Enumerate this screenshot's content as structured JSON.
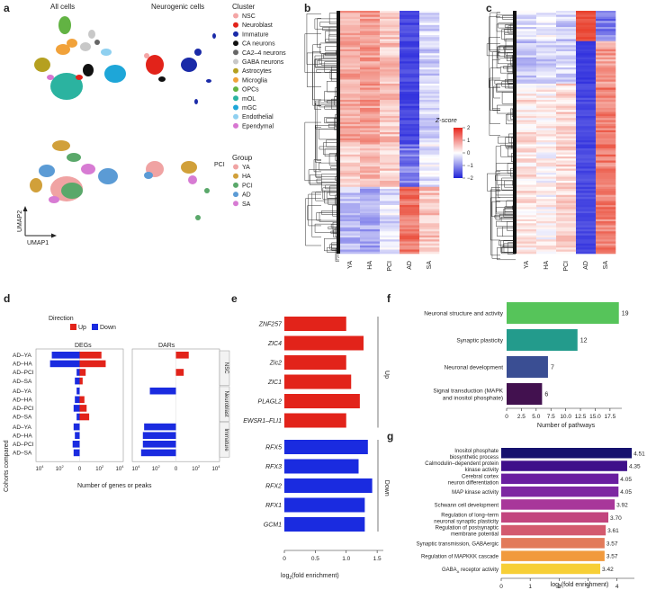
{
  "panels": {
    "a": {
      "letter": "a",
      "title_left": "All cells",
      "title_right": "Neurogenic cells",
      "pci_label": "PCI",
      "axis_y": "UMAP2",
      "axis_x": "UMAP1",
      "cluster_legend": {
        "title": "Cluster",
        "items": [
          {
            "label": "NSC",
            "color": "#f4a6a6"
          },
          {
            "label": "Neuroblast",
            "color": "#e2231a"
          },
          {
            "label": "Immature",
            "color": "#1a2aa8"
          },
          {
            "label": "CA neurons",
            "color": "#111111"
          },
          {
            "label": "CA2–4 neurons",
            "color": "#666666"
          },
          {
            "label": "GABA neurons",
            "color": "#c8c8c8"
          },
          {
            "label": "Astrocytes",
            "color": "#b5a020"
          },
          {
            "label": "Microglia",
            "color": "#f1a23a"
          },
          {
            "label": "OPCs",
            "color": "#62b343"
          },
          {
            "label": "mOL",
            "color": "#2bb3a0"
          },
          {
            "label": "mGC",
            "color": "#1ea6d8"
          },
          {
            "label": "Endothelial",
            "color": "#8fd0f0"
          },
          {
            "label": "Ependymal",
            "color": "#d776d1"
          }
        ]
      },
      "group_legend": {
        "title": "Group",
        "items": [
          {
            "label": "YA",
            "color": "#f0a3a3"
          },
          {
            "label": "HA",
            "color": "#d1a03a"
          },
          {
            "label": "PCI",
            "color": "#5aa86a"
          },
          {
            "label": "AD",
            "color": "#5b9bd5"
          },
          {
            "label": "SA",
            "color": "#d77bd3"
          }
        ]
      }
    },
    "b": {
      "letter": "b",
      "columns": [
        "YA",
        "HA",
        "PCI",
        "AD",
        "SA"
      ],
      "colorbar_title": "Z-score",
      "colorbar_ticks": [
        "2",
        "1",
        "0",
        "−1",
        "−2"
      ]
    },
    "c": {
      "letter": "c",
      "columns": [
        "YA",
        "HA",
        "PCI",
        "AD",
        "SA"
      ]
    },
    "d": {
      "letter": "d",
      "legend_title": "Direction",
      "legend_items": [
        {
          "label": "Up",
          "color": "#e2231a"
        },
        {
          "label": "Down",
          "color": "#1a2be0"
        }
      ],
      "facet_titles": [
        "DEGs",
        "DARs"
      ],
      "row_groups": [
        "NSC",
        "Neuroblast",
        "Immature"
      ],
      "row_labels": [
        "AD–YA",
        "AD–HA",
        "AD–PCI",
        "AD–SA"
      ],
      "ylabel": "Cohorts compared",
      "xlabel": "Number of genes or peaks",
      "x_ticks": [
        "10",
        "10",
        "0",
        "10",
        "10"
      ],
      "x_tick_sups": [
        "4",
        "2",
        "",
        "2",
        "4"
      ]
    },
    "e": {
      "letter": "e",
      "xlabel": "log",
      "xlabel_sub": "2",
      "xlabel_rest": "(fold enrichment)",
      "x_ticks": [
        "0",
        "0.5",
        "1.0",
        "1.5"
      ],
      "group_up": "Up",
      "group_down": "Down"
    },
    "f": {
      "letter": "f",
      "xlabel": "Number of pathways",
      "x_ticks": [
        "0",
        "2.5",
        "5.0",
        "7.5",
        "10.0",
        "12.5",
        "15.0",
        "17.5"
      ]
    },
    "g": {
      "letter": "g",
      "xlabel": "log",
      "xlabel_sub": "2",
      "xlabel_rest": "(fold enrichment)",
      "x_ticks": [
        "0",
        "1",
        "2",
        "3",
        "4"
      ]
    }
  },
  "chart_data": [
    {
      "type": "bar",
      "panel": "d",
      "orientation": "horizontal",
      "xscale": "symlog",
      "categories": [
        "NSC AD–YA",
        "NSC AD–HA",
        "NSC AD–PCI",
        "NSC AD–SA",
        "Neuroblast AD–YA",
        "Neuroblast AD–HA",
        "Neuroblast AD–PCI",
        "Neuroblast AD–SA",
        "Immature AD–YA",
        "Immature AD–HA",
        "Immature AD–PCI",
        "Immature AD–SA"
      ],
      "series": [
        {
          "name": "DEGs Up",
          "color": "#e2231a",
          "values": [
            150,
            400,
            3,
            1,
            0,
            2,
            4,
            8,
            0,
            0,
            0,
            0
          ]
        },
        {
          "name": "DEGs Down",
          "color": "#1a2be0",
          "values": [
            -600,
            -900,
            -1,
            -2,
            -1,
            -2,
            -3,
            -1,
            -3,
            -2,
            -4,
            -3
          ]
        },
        {
          "name": "DARs Up",
          "color": "#e2231a",
          "values": [
            18,
            0,
            5,
            0,
            0,
            0,
            0,
            0,
            0,
            0,
            0,
            0
          ]
        },
        {
          "name": "DARs Down",
          "color": "#1a2be0",
          "values": [
            0,
            0,
            0,
            0,
            -400,
            0,
            0,
            0,
            -1500,
            -2000,
            -2000,
            -3000
          ]
        }
      ]
    },
    {
      "type": "bar",
      "panel": "e",
      "orientation": "horizontal",
      "categories": [
        "ZNF257",
        "ZIC4",
        "Zic2",
        "ZIC1",
        "PLAGL2",
        "EWSR1–FLI1",
        "RFX5",
        "RFX3",
        "RFX2",
        "RFX1",
        "GCM1"
      ],
      "groups": [
        "Up",
        "Up",
        "Up",
        "Up",
        "Up",
        "Up",
        "Down",
        "Down",
        "Down",
        "Down",
        "Down"
      ],
      "values": [
        1.0,
        1.28,
        1.0,
        1.08,
        1.22,
        1.0,
        1.35,
        1.2,
        1.42,
        1.3,
        1.3
      ],
      "colors": {
        "Up": "#e2231a",
        "Down": "#1a2be0"
      },
      "xlim": [
        0,
        1.6
      ]
    },
    {
      "type": "bar",
      "panel": "f",
      "orientation": "horizontal",
      "categories": [
        "Neuronal structure and activity",
        "Synaptic plasticity",
        "Neuronal development",
        "Signal transduction (MAPK and inositol phosphate)"
      ],
      "values": [
        19,
        12,
        7,
        6
      ],
      "colors": [
        "#56c45a",
        "#239b8c",
        "#3a4e93",
        "#42114f"
      ],
      "xlim": [
        0,
        19.5
      ]
    },
    {
      "type": "bar",
      "panel": "g",
      "orientation": "horizontal",
      "categories": [
        "Inositol phosphate biosynthetic process",
        "Calmodulin–dependent protein kinase activity",
        "Cerebral cortex neuron differentiation",
        "MAP kinase activity",
        "Schwann cell development",
        "Regulation of long–term neuronal synaptic plasticity",
        "Regulation of postsynaptic membrane potential",
        "Synaptic transmission, GABAergic",
        "Regulation of MAPKKK cascade",
        "GABA_A receptor activity"
      ],
      "values": [
        4.51,
        4.35,
        4.05,
        4.05,
        3.92,
        3.7,
        3.61,
        3.57,
        3.57,
        3.42
      ],
      "value_labels": [
        "4.51",
        "4.35",
        "4.05",
        "4.05",
        "3.92",
        "3.70",
        "3.61",
        "3.57",
        "3.57",
        "3.42"
      ],
      "colors": [
        "#15116e",
        "#3e0f8a",
        "#6a1ea0",
        "#7d27a2",
        "#a8379a",
        "#c2457e",
        "#d35a6e",
        "#e27a5a",
        "#f19a3d",
        "#f7cf36"
      ],
      "xlim": [
        0,
        4.6
      ]
    },
    {
      "type": "heatmap",
      "panel": "b",
      "columns": [
        "YA",
        "HA",
        "PCI",
        "AD",
        "SA"
      ],
      "value_range": [
        -2,
        2
      ]
    },
    {
      "type": "heatmap",
      "panel": "c",
      "columns": [
        "YA",
        "HA",
        "PCI",
        "AD",
        "SA"
      ],
      "value_range": [
        -2,
        2
      ]
    }
  ]
}
